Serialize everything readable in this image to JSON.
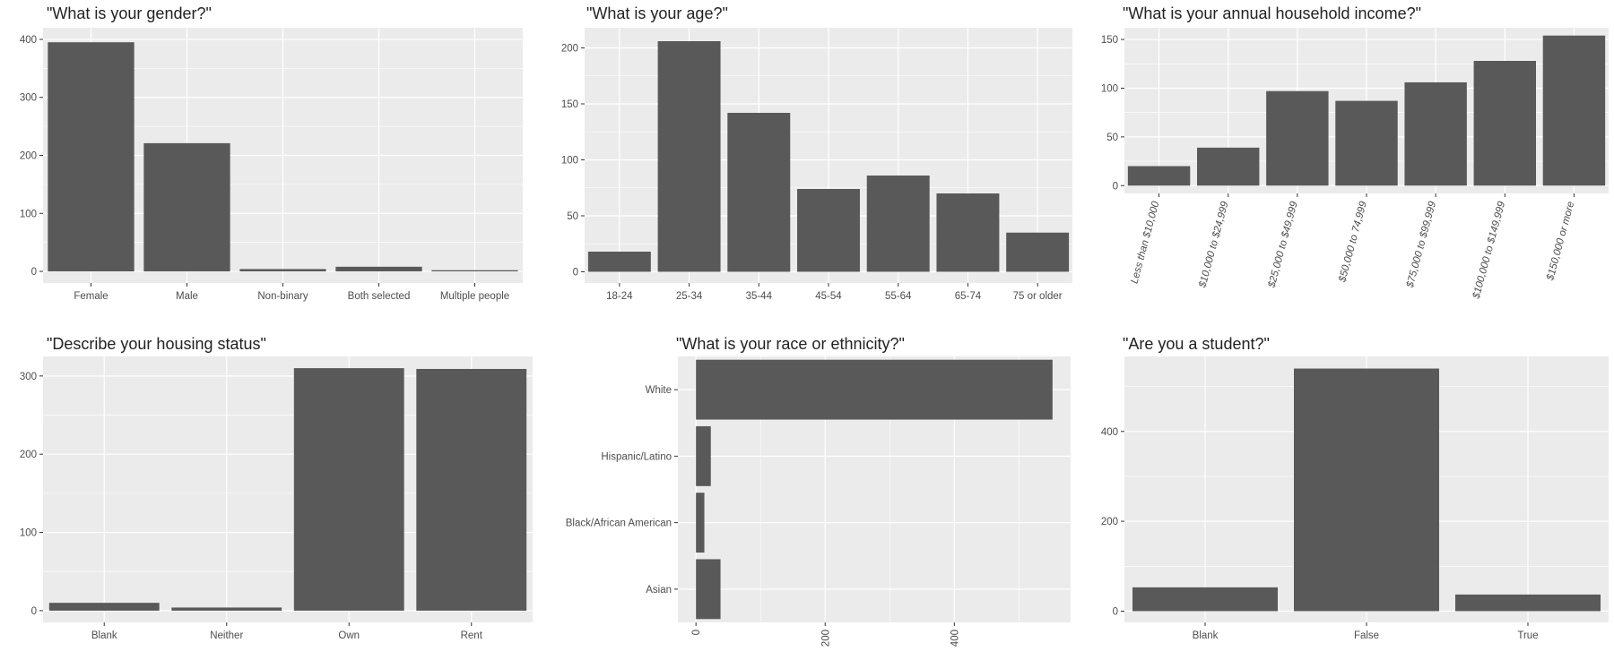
{
  "chart_data": [
    {
      "type": "bar",
      "title": "\"What is your gender?\"",
      "categories": [
        "Female",
        "Male",
        "Non-binary",
        "Both selected",
        "Multiple people"
      ],
      "values": [
        395,
        221,
        4,
        8,
        2
      ],
      "xlabel": "",
      "ylabel": "",
      "ylim": [
        -20,
        420
      ],
      "yticks": [
        0,
        100,
        200,
        300,
        400
      ],
      "orientation": "vertical",
      "grid": true,
      "colors": {
        "bar": "#595959",
        "panel": "#ebebeb",
        "grid": "#ffffff"
      }
    },
    {
      "type": "bar",
      "title": "\"What is your age?\"",
      "categories": [
        "18-24",
        "25-34",
        "35-44",
        "45-54",
        "55-64",
        "65-74",
        "75 or older"
      ],
      "values": [
        18,
        206,
        142,
        74,
        86,
        70,
        35
      ],
      "xlabel": "",
      "ylabel": "",
      "ylim": [
        -10,
        218
      ],
      "yticks": [
        0,
        50,
        100,
        150,
        200
      ],
      "orientation": "vertical",
      "grid": true
    },
    {
      "type": "bar",
      "title": "\"What is your annual household income?\"",
      "categories": [
        "Less than $10,000",
        "$10,000 to $24,999",
        "$25,000 to $49,999",
        "$50,000 to 74,999",
        "$75,000 to $99,999",
        "$100,000 to $149,999",
        "$150,000 or more"
      ],
      "values": [
        20,
        39,
        97,
        87,
        106,
        128,
        154
      ],
      "xlabel": "",
      "ylabel": "",
      "ylim": [
        -8,
        162
      ],
      "yticks": [
        0,
        50,
        100,
        150
      ],
      "orientation": "vertical",
      "tick_label_rotation": "vertical",
      "grid": true
    },
    {
      "type": "bar",
      "title": "\"Describe your housing status\"",
      "categories": [
        "Blank",
        "Neither",
        "Own",
        "Rent"
      ],
      "values": [
        10,
        4,
        310,
        309
      ],
      "xlabel": "",
      "ylabel": "",
      "ylim": [
        -15,
        325
      ],
      "yticks": [
        0,
        100,
        200,
        300
      ],
      "orientation": "vertical",
      "grid": true
    },
    {
      "type": "bar",
      "title": "\"What is your race or ethnicity?\"",
      "categories": [
        "White",
        "Hispanic/Latino",
        "Black/African American",
        "Asian"
      ],
      "values": [
        552,
        23,
        13,
        38
      ],
      "xlabel": "",
      "ylabel": "",
      "xlim": [
        -28,
        580
      ],
      "xticks": [
        0,
        200,
        400
      ],
      "orientation": "horizontal",
      "tick_label_rotation": "vertical",
      "grid": true
    },
    {
      "type": "bar",
      "title": "\"Are you a student?\"",
      "categories": [
        "Blank",
        "False",
        "True"
      ],
      "values": [
        53,
        540,
        37
      ],
      "xlabel": "",
      "ylabel": "",
      "ylim": [
        -25,
        567
      ],
      "yticks": [
        0,
        200,
        400
      ],
      "orientation": "vertical",
      "grid": true
    }
  ]
}
